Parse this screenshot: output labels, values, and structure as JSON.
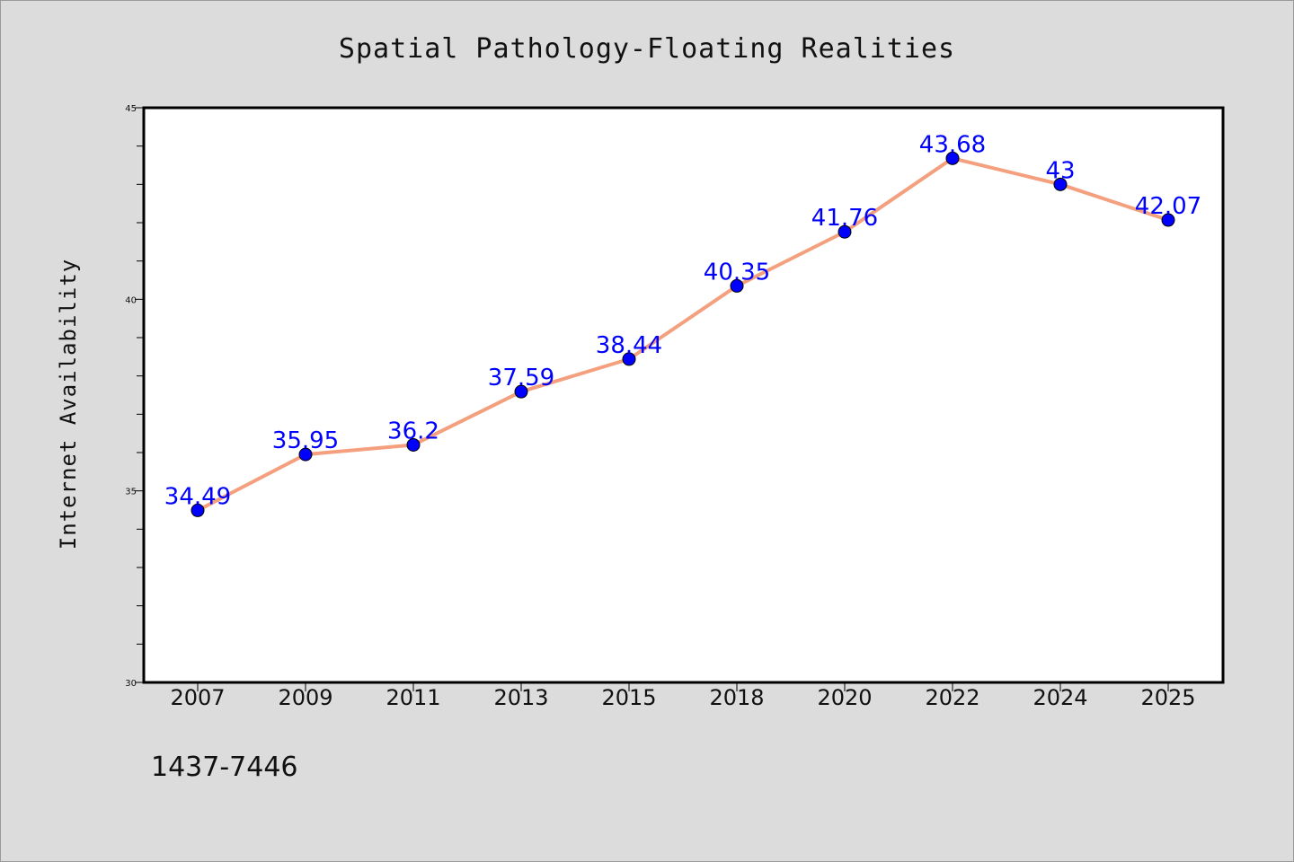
{
  "chart_data": {
    "type": "line",
    "title": "Spatial Pathology-Floating Realities",
    "xlabel": "",
    "ylabel": "Internet Availability",
    "categories": [
      "2007",
      "2009",
      "2011",
      "2013",
      "2015",
      "2018",
      "2020",
      "2022",
      "2024",
      "2025"
    ],
    "series": [
      {
        "values": [
          34.49,
          35.95,
          36.2,
          37.59,
          38.44,
          40.35,
          41.76,
          43.68,
          43,
          42.07
        ],
        "data_labels": [
          "34.49",
          "35.95",
          "36.2",
          "37.59",
          "38.44",
          "40.35",
          "41.76",
          "43.68",
          "43",
          "42.07"
        ],
        "line_color": "#f4a07e",
        "marker_color": "#0000ff"
      }
    ],
    "ylim": [
      30,
      45
    ],
    "yticks": [
      "30",
      "35",
      "40",
      "45"
    ],
    "grid": false,
    "legend": "none",
    "plot_background": "#ffffff",
    "page_background": "#dcdcdc"
  },
  "footer": {
    "code": "1437-7446"
  }
}
